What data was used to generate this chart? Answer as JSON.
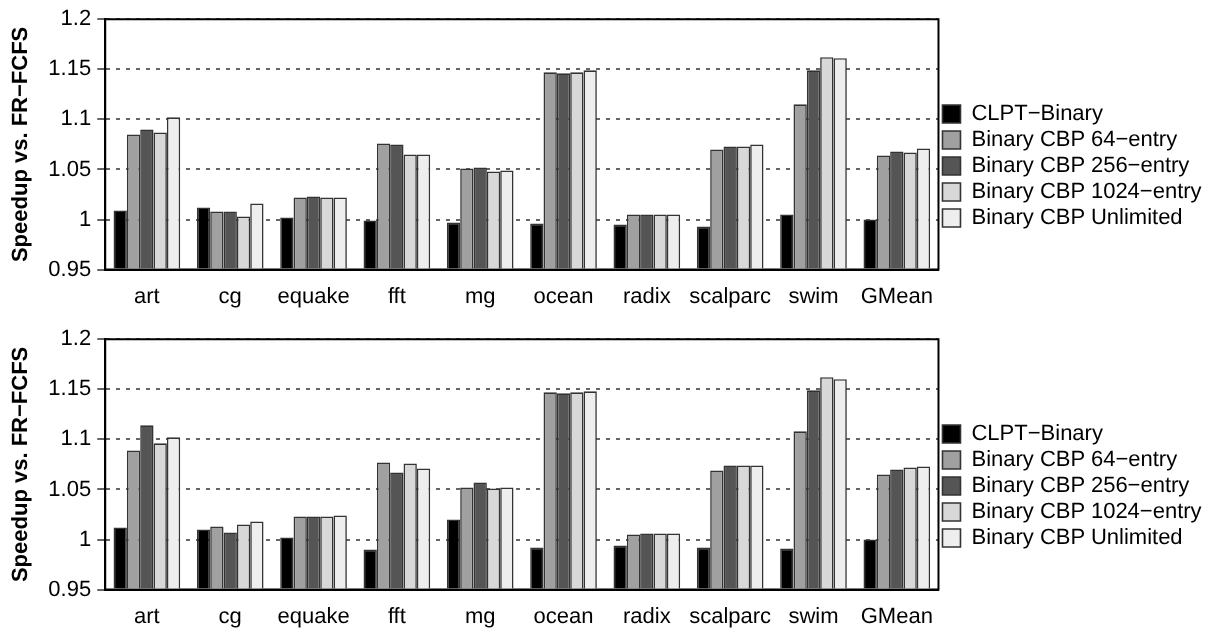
{
  "chart_data": [
    {
      "type": "bar",
      "ylabel": "Speedup vs. FR−FCFS",
      "categories": [
        "art",
        "cg",
        "equake",
        "fft",
        "mg",
        "ocean",
        "radix",
        "scalparc",
        "swim",
        "GMean"
      ],
      "ylim": [
        0.95,
        1.2
      ],
      "yticks": [
        {
          "value": 0.95,
          "label": "0.95"
        },
        {
          "value": 1,
          "label": "1"
        },
        {
          "value": 1.05,
          "label": "1.05"
        },
        {
          "value": 1.1,
          "label": "1.1"
        },
        {
          "value": 1.15,
          "label": "1.15"
        },
        {
          "value": 1.2,
          "label": "1.2"
        }
      ],
      "grid": "y",
      "legend": "right",
      "series": [
        {
          "name": "CLPT−Binary",
          "color": "#000000",
          "values": [
            1.009,
            1.012,
            1.002,
            0.999,
            0.997,
            0.996,
            0.995,
            0.993,
            1.005,
            1.0
          ]
        },
        {
          "name": "Binary CBP 64−entry",
          "color": "#a0a0a0",
          "values": [
            1.085,
            1.008,
            1.022,
            1.076,
            1.051,
            1.147,
            1.005,
            1.07,
            1.115,
            1.064
          ]
        },
        {
          "name": "Binary CBP 256−entry",
          "color": "#555555",
          "values": [
            1.09,
            1.008,
            1.023,
            1.075,
            1.052,
            1.146,
            1.005,
            1.073,
            1.149,
            1.068
          ]
        },
        {
          "name": "Binary CBP 1024−entry",
          "color": "#d8d8d8",
          "values": [
            1.087,
            1.003,
            1.022,
            1.065,
            1.048,
            1.147,
            1.005,
            1.073,
            1.162,
            1.067
          ]
        },
        {
          "name": "Binary CBP Unlimited",
          "color": "#eeeeee",
          "values": [
            1.102,
            1.016,
            1.022,
            1.065,
            1.049,
            1.149,
            1.005,
            1.075,
            1.161,
            1.071
          ]
        }
      ]
    },
    {
      "type": "bar",
      "ylabel": "Speedup vs. FR−FCFS",
      "categories": [
        "art",
        "cg",
        "equake",
        "fft",
        "mg",
        "ocean",
        "radix",
        "scalparc",
        "swim",
        "GMean"
      ],
      "ylim": [
        0.95,
        1.2
      ],
      "yticks": [
        {
          "value": 0.95,
          "label": "0.95"
        },
        {
          "value": 1,
          "label": "1"
        },
        {
          "value": 1.05,
          "label": "1.05"
        },
        {
          "value": 1.1,
          "label": "1.1"
        },
        {
          "value": 1.15,
          "label": "1.15"
        },
        {
          "value": 1.2,
          "label": "1.2"
        }
      ],
      "grid": "y",
      "legend": "right",
      "series": [
        {
          "name": "CLPT−Binary",
          "color": "#000000",
          "values": [
            1.012,
            1.01,
            1.002,
            0.99,
            1.02,
            0.992,
            0.994,
            0.992,
            0.991,
            1.0
          ]
        },
        {
          "name": "Binary CBP 64−entry",
          "color": "#a0a0a0",
          "values": [
            1.089,
            1.013,
            1.023,
            1.077,
            1.052,
            1.147,
            1.005,
            1.069,
            1.108,
            1.065
          ]
        },
        {
          "name": "Binary CBP 256−entry",
          "color": "#555555",
          "values": [
            1.114,
            1.007,
            1.023,
            1.067,
            1.057,
            1.146,
            1.006,
            1.074,
            1.149,
            1.07
          ]
        },
        {
          "name": "Binary CBP 1024−entry",
          "color": "#d8d8d8",
          "values": [
            1.096,
            1.015,
            1.023,
            1.076,
            1.051,
            1.147,
            1.006,
            1.074,
            1.162,
            1.072
          ]
        },
        {
          "name": "Binary CBP Unlimited",
          "color": "#eeeeee",
          "values": [
            1.102,
            1.018,
            1.024,
            1.071,
            1.052,
            1.148,
            1.006,
            1.074,
            1.16,
            1.073
          ]
        }
      ]
    }
  ]
}
